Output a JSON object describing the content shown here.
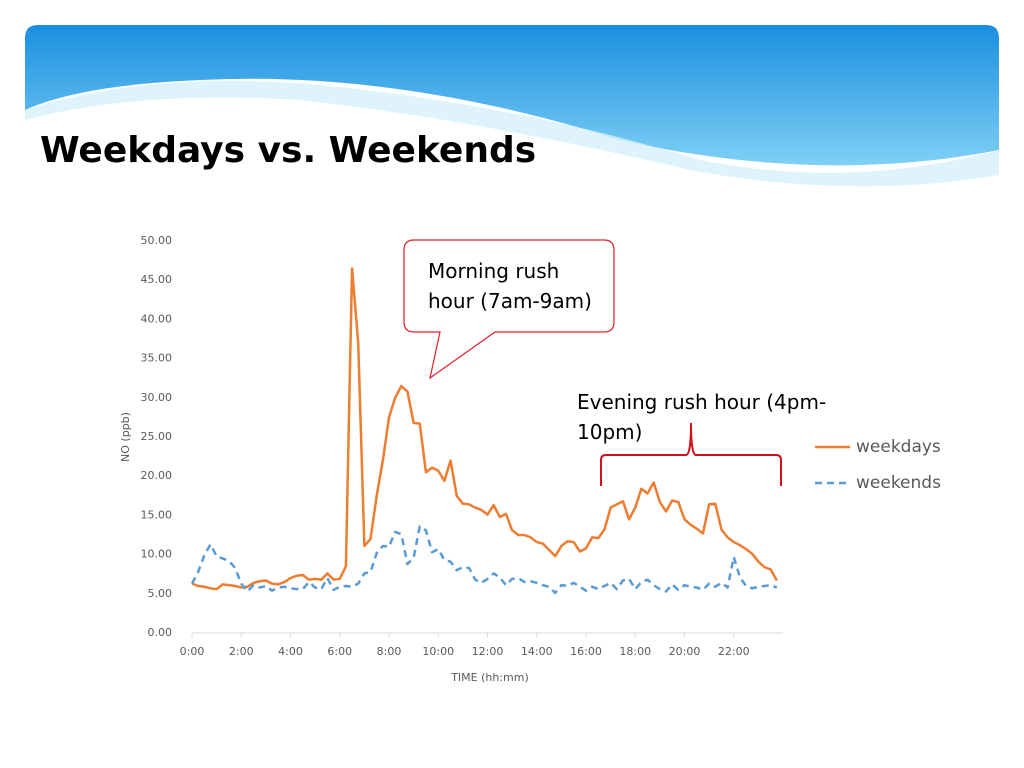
{
  "chart_data": {
    "type": "line",
    "title": "Weekdays vs. Weekends",
    "x_label": "TIME (hh:mm)",
    "y_label": "NO (ppb)",
    "annotations": [
      "Morning rush hour (7am-9am)",
      "Evening rush hour (4pm-10pm)"
    ],
    "x": [
      0,
      0.25,
      0.5,
      0.75,
      1,
      1.25,
      1.5,
      1.75,
      2,
      2.25,
      2.5,
      2.75,
      3,
      3.25,
      3.5,
      3.75,
      4,
      4.25,
      4.5,
      4.75,
      5,
      5.25,
      5.5,
      5.75,
      6,
      6.25,
      6.5,
      6.75,
      7,
      7.25,
      7.5,
      7.75,
      8,
      8.25,
      8.5,
      8.75,
      9,
      9.25,
      9.5,
      9.75,
      10,
      10.25,
      10.5,
      10.75,
      11,
      11.25,
      11.5,
      11.75,
      12,
      12.25,
      12.5,
      12.75,
      13,
      13.25,
      13.5,
      13.75,
      14,
      14.25,
      14.5,
      14.75,
      15,
      15.25,
      15.5,
      15.75,
      16,
      16.25,
      16.5,
      16.75,
      17,
      17.25,
      17.5,
      17.75,
      18,
      18.25,
      18.5,
      18.75,
      19,
      19.25,
      19.5,
      19.75,
      20,
      20.25,
      20.5,
      20.75,
      21,
      21.25,
      21.5,
      21.75,
      22,
      22.25,
      22.5,
      22.75,
      23,
      23.25,
      23.5,
      23.75
    ],
    "series": [
      {
        "name": "weekdays",
        "color": "#ed7d31",
        "dashed": false,
        "values": [
          6.3,
          6.0,
          5.9,
          5.7,
          5.6,
          6.2,
          6.1,
          6.0,
          5.8,
          5.9,
          6.4,
          6.6,
          6.7,
          6.3,
          6.2,
          6.5,
          7.0,
          7.3,
          7.4,
          6.8,
          6.9,
          6.8,
          7.6,
          6.8,
          6.9,
          8.5,
          46.5,
          37,
          11.1,
          12,
          17.5,
          22,
          27.5,
          30,
          31.5,
          30.8,
          26.8,
          26.7,
          20.5,
          21.1,
          20.7,
          19.4,
          22,
          17.5,
          16.5,
          16.4,
          16,
          15.7,
          15.1,
          16.3,
          14.8,
          15.2,
          13.1,
          12.5,
          12.5,
          12.2,
          11.6,
          11.4,
          10.6,
          9.8,
          11.1,
          11.7,
          11.6,
          10.4,
          10.8,
          12.2,
          12.1,
          13.2,
          16,
          16.4,
          16.8,
          14.5,
          16,
          18.4,
          17.8,
          19.2,
          16.7,
          15.5,
          16.9,
          16.7,
          14.5,
          13.8,
          13.3,
          12.7,
          16.4,
          16.5,
          13.2,
          12.2,
          11.6,
          11.2,
          10.7,
          10.1,
          9.1,
          8.4,
          8.1,
          6.7
        ]
      },
      {
        "name": "weekends",
        "color": "#5b9bd5",
        "dashed": true,
        "values": [
          6.3,
          7.8,
          9.9,
          11.3,
          9.8,
          9.5,
          9.2,
          8.3,
          6.3,
          5.3,
          6.1,
          5.8,
          6.0,
          5.4,
          5.8,
          5.9,
          5.7,
          5.6,
          5.6,
          6.5,
          5.8,
          5.6,
          7.0,
          5.5,
          5.9,
          6.0,
          5.9,
          6.3,
          7.6,
          7.8,
          10.2,
          11.1,
          11.0,
          12.9,
          12.6,
          8.8,
          9.6,
          13.6,
          13.1,
          10.3,
          10.7,
          9.3,
          9.1,
          8.0,
          8.4,
          8.3,
          6.8,
          6.4,
          6.9,
          7.6,
          7.1,
          6.1,
          6.9,
          7.0,
          6.5,
          6.6,
          6.4,
          6.1,
          5.9,
          5.1,
          6.1,
          6.0,
          6.4,
          5.9,
          5.4,
          5.9,
          5.6,
          6.0,
          6.4,
          5.6,
          6.7,
          6.9,
          5.6,
          6.5,
          6.8,
          6.1,
          5.6,
          5.3,
          6.2,
          5.5,
          6.1,
          5.9,
          5.8,
          5.5,
          6.3,
          5.9,
          6.4,
          5.8,
          9.7,
          7.1,
          6.0,
          5.7,
          5.9,
          6.0,
          6.1,
          5.8
        ]
      }
    ],
    "xlim": [
      0,
      24
    ],
    "xticks": [
      {
        "value": 0,
        "label": "0:00"
      },
      {
        "value": 2,
        "label": "2:00"
      },
      {
        "value": 4,
        "label": "4:00"
      },
      {
        "value": 6,
        "label": "6:00"
      },
      {
        "value": 8,
        "label": "8:00"
      },
      {
        "value": 10,
        "label": "10:00"
      },
      {
        "value": 12,
        "label": "12:00"
      },
      {
        "value": 14,
        "label": "14:00"
      },
      {
        "value": 16,
        "label": "16:00"
      },
      {
        "value": 18,
        "label": "18:00"
      },
      {
        "value": 20,
        "label": "20:00"
      },
      {
        "value": 22,
        "label": "22:00"
      }
    ],
    "ylim": [
      0,
      50
    ],
    "yticks": [
      {
        "value": 0,
        "label": "0.00"
      },
      {
        "value": 5,
        "label": "5.00"
      },
      {
        "value": 10,
        "label": "10.00"
      },
      {
        "value": 15,
        "label": "15.00"
      },
      {
        "value": 20,
        "label": "20.00"
      },
      {
        "value": 25,
        "label": "25.00"
      },
      {
        "value": 30,
        "label": "30.00"
      },
      {
        "value": 35,
        "label": "35.00"
      },
      {
        "value": 40,
        "label": "40.00"
      },
      {
        "value": 45,
        "label": "45.00"
      },
      {
        "value": 50,
        "label": "50.00"
      }
    ],
    "grid": false,
    "legend": "right"
  }
}
